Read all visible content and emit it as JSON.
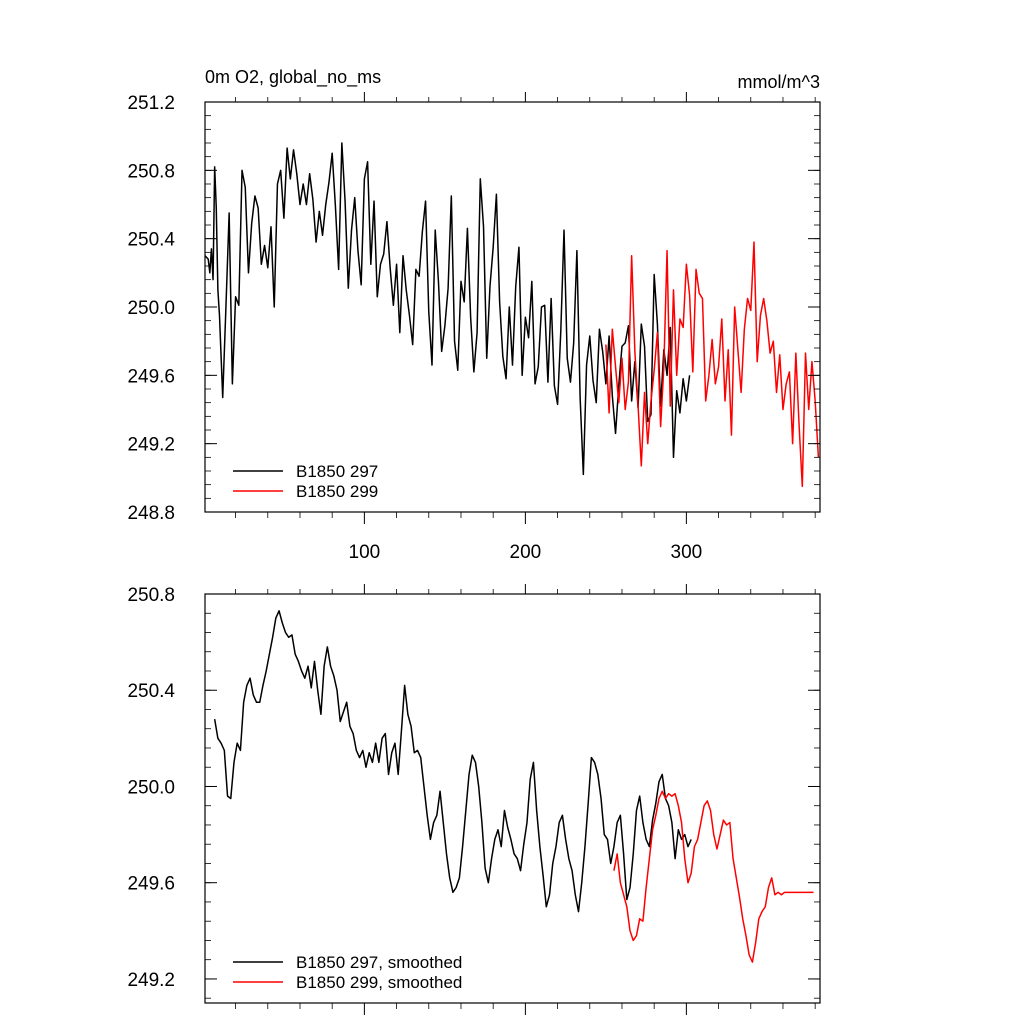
{
  "chart_data": [
    {
      "type": "line",
      "title": "0m O2, global_no_ms",
      "units": "mmol/m^3",
      "xlabel": "",
      "ylabel": "",
      "xlim": [
        1,
        383
      ],
      "ylim": [
        248.8,
        251.2
      ],
      "x_ticks": [
        100,
        200,
        300
      ],
      "x_tick_labels": [
        "100",
        "200",
        "300"
      ],
      "y_ticks": [
        248.8,
        249.2,
        249.6,
        250.0,
        250.4,
        250.8,
        251.2
      ],
      "y_tick_labels": [
        "248.8",
        "249.2",
        "249.6",
        "250.0",
        "250.4",
        "250.8",
        "251.2"
      ],
      "grid": false,
      "legend_position": "bottom-left",
      "series": [
        {
          "name": "B1850 297",
          "color": "#000000",
          "x": [
            1,
            3,
            4,
            5,
            6,
            7,
            8,
            9,
            10,
            12,
            14,
            16,
            18,
            20,
            22,
            24,
            26,
            28,
            30,
            32,
            34,
            36,
            38,
            40,
            42,
            44,
            46,
            48,
            50,
            52,
            54,
            56,
            58,
            60,
            62,
            64,
            66,
            68,
            70,
            72,
            74,
            76,
            78,
            80,
            82,
            84,
            86,
            88,
            90,
            92,
            94,
            96,
            98,
            100,
            102,
            104,
            106,
            108,
            110,
            112,
            114,
            116,
            118,
            120,
            122,
            124,
            126,
            128,
            130,
            132,
            134,
            136,
            138,
            140,
            142,
            144,
            146,
            148,
            150,
            152,
            154,
            156,
            158,
            160,
            162,
            164,
            166,
            168,
            170,
            172,
            174,
            176,
            178,
            180,
            182,
            184,
            186,
            188,
            190,
            192,
            194,
            196,
            198,
            200,
            202,
            204,
            206,
            208,
            210,
            212,
            214,
            216,
            218,
            220,
            222,
            224,
            226,
            228,
            230,
            232,
            234,
            236,
            238,
            240,
            242,
            244,
            246,
            248,
            250,
            252,
            254,
            256,
            258,
            260,
            262,
            264,
            266,
            268,
            270,
            272,
            274,
            276,
            278,
            280,
            282,
            284,
            286,
            288,
            290,
            292,
            294,
            296,
            298,
            300,
            302
          ],
          "y": [
            250.3,
            250.28,
            250.2,
            250.34,
            250.16,
            250.82,
            250.58,
            250.1,
            249.95,
            249.47,
            250.0,
            250.55,
            249.55,
            250.06,
            250.01,
            250.8,
            250.7,
            250.2,
            250.49,
            250.65,
            250.58,
            250.25,
            250.36,
            250.23,
            250.47,
            250.0,
            250.72,
            250.8,
            250.52,
            250.93,
            250.75,
            250.92,
            250.78,
            250.6,
            250.72,
            250.6,
            250.78,
            250.63,
            250.38,
            250.56,
            250.42,
            250.6,
            250.73,
            250.9,
            250.59,
            250.22,
            250.96,
            250.62,
            250.11,
            250.45,
            250.64,
            250.33,
            250.13,
            250.75,
            250.85,
            250.25,
            250.62,
            250.06,
            250.25,
            250.31,
            250.5,
            250.23,
            250.01,
            250.25,
            249.85,
            250.3,
            250.1,
            249.95,
            249.78,
            250.22,
            250.18,
            250.44,
            250.62,
            249.97,
            249.66,
            250.45,
            250.15,
            249.74,
            249.89,
            250.11,
            250.65,
            249.8,
            249.63,
            250.15,
            250.03,
            250.46,
            249.94,
            249.62,
            249.85,
            250.75,
            250.47,
            249.7,
            250.12,
            250.35,
            250.66,
            250.03,
            249.71,
            249.58,
            250.0,
            249.66,
            250.12,
            250.35,
            249.6,
            249.94,
            249.82,
            250.15,
            249.55,
            249.65,
            250.0,
            250.01,
            249.56,
            250.05,
            249.54,
            249.43,
            249.86,
            250.45,
            249.7,
            249.56,
            249.79,
            250.33,
            249.47,
            249.02,
            249.66,
            249.83,
            249.57,
            249.44,
            249.87,
            249.74,
            249.55,
            249.83,
            249.48,
            249.26,
            249.54,
            249.77,
            249.79,
            249.89,
            249.45,
            249.68,
            249.41,
            249.9,
            249.77,
            249.33,
            249.37,
            250.19,
            249.9,
            249.42,
            249.75,
            249.6,
            249.88,
            249.12,
            249.51,
            249.38,
            249.58,
            249.45,
            249.6
          ]
        },
        {
          "name": "B1850 299",
          "color": "#ff0000",
          "x": [
            250,
            252,
            254,
            256,
            258,
            260,
            262,
            264,
            266,
            268,
            270,
            272,
            274,
            276,
            278,
            280,
            282,
            284,
            286,
            288,
            290,
            292,
            294,
            296,
            298,
            300,
            302,
            304,
            306,
            308,
            310,
            312,
            314,
            316,
            318,
            320,
            322,
            324,
            326,
            328,
            330,
            332,
            334,
            336,
            338,
            340,
            342,
            344,
            346,
            348,
            350,
            352,
            354,
            356,
            358,
            360,
            362,
            364,
            366,
            368,
            370,
            372,
            374,
            376,
            378,
            380,
            382
          ],
          "y": [
            249.78,
            249.38,
            249.87,
            249.65,
            249.44,
            249.7,
            249.4,
            249.56,
            250.3,
            249.74,
            249.42,
            249.07,
            249.5,
            249.2,
            249.45,
            249.63,
            249.85,
            249.3,
            249.65,
            250.33,
            249.42,
            250.1,
            249.6,
            249.93,
            249.88,
            250.25,
            250.07,
            249.62,
            250.22,
            250.08,
            250.05,
            249.45,
            249.6,
            249.81,
            249.55,
            249.65,
            249.93,
            249.45,
            249.75,
            249.25,
            250.0,
            249.75,
            249.5,
            249.87,
            250.05,
            249.98,
            250.38,
            249.68,
            249.95,
            250.05,
            249.92,
            249.73,
            249.8,
            249.5,
            249.72,
            249.4,
            249.55,
            249.62,
            249.2,
            249.73,
            249.31,
            248.95,
            249.73,
            249.4,
            249.68,
            249.45,
            249.12
          ]
        }
      ]
    },
    {
      "type": "line",
      "title": "",
      "xlabel": "",
      "ylabel": "",
      "xlim": [
        1,
        383
      ],
      "ylim": [
        249.1,
        250.8
      ],
      "x_ticks": [
        100,
        200,
        300
      ],
      "x_tick_labels": [],
      "y_ticks": [
        249.2,
        249.6,
        250.0,
        250.4,
        250.8
      ],
      "y_tick_labels": [
        "249.2",
        "249.6",
        "250.0",
        "250.4",
        "250.8"
      ],
      "grid": false,
      "legend_position": "bottom-left",
      "series": [
        {
          "name": "B1850 297, smoothed",
          "color": "#000000",
          "x": [
            7,
            9,
            11,
            13,
            15,
            17,
            19,
            21,
            23,
            25,
            27,
            29,
            31,
            33,
            35,
            37,
            39,
            41,
            43,
            45,
            47,
            49,
            51,
            53,
            55,
            57,
            59,
            61,
            63,
            65,
            67,
            69,
            71,
            73,
            75,
            77,
            79,
            81,
            83,
            85,
            87,
            89,
            91,
            93,
            95,
            97,
            99,
            101,
            103,
            105,
            107,
            109,
            111,
            113,
            115,
            117,
            119,
            121,
            123,
            125,
            127,
            129,
            131,
            133,
            135,
            137,
            139,
            141,
            143,
            145,
            147,
            149,
            151,
            153,
            155,
            157,
            159,
            161,
            163,
            165,
            167,
            169,
            171,
            173,
            175,
            177,
            179,
            181,
            183,
            185,
            187,
            189,
            191,
            193,
            195,
            197,
            199,
            201,
            203,
            205,
            207,
            209,
            211,
            213,
            215,
            217,
            219,
            221,
            223,
            225,
            227,
            229,
            231,
            233,
            235,
            237,
            239,
            241,
            243,
            245,
            247,
            249,
            251,
            253,
            255,
            257,
            259,
            261,
            263,
            265,
            267,
            269,
            271,
            273,
            275,
            277,
            279,
            281,
            283,
            285,
            287,
            289,
            291,
            293,
            295,
            297,
            299,
            301,
            303
          ],
          "y": [
            250.28,
            250.2,
            250.18,
            250.15,
            249.96,
            249.95,
            250.1,
            250.18,
            250.15,
            250.35,
            250.42,
            250.45,
            250.38,
            250.35,
            250.35,
            250.42,
            250.48,
            250.55,
            250.62,
            250.7,
            250.73,
            250.68,
            250.64,
            250.62,
            250.63,
            250.55,
            250.52,
            250.48,
            250.45,
            250.5,
            250.41,
            250.52,
            250.4,
            250.3,
            250.5,
            250.58,
            250.5,
            250.46,
            250.4,
            250.27,
            250.31,
            250.35,
            250.25,
            250.22,
            250.15,
            250.12,
            250.15,
            250.08,
            250.14,
            250.1,
            250.18,
            250.1,
            250.2,
            250.22,
            250.05,
            250.14,
            250.18,
            250.05,
            250.23,
            250.42,
            250.3,
            250.25,
            250.14,
            250.15,
            250.12,
            250.0,
            249.88,
            249.78,
            249.85,
            249.88,
            249.98,
            249.85,
            249.72,
            249.62,
            249.56,
            249.58,
            249.62,
            249.75,
            249.9,
            250.05,
            250.13,
            250.1,
            250.0,
            249.85,
            249.66,
            249.6,
            249.7,
            249.78,
            249.82,
            249.75,
            249.9,
            249.83,
            249.78,
            249.72,
            249.7,
            249.65,
            249.76,
            249.85,
            250.03,
            250.1,
            249.9,
            249.75,
            249.63,
            249.5,
            249.55,
            249.68,
            249.75,
            249.85,
            249.88,
            249.78,
            249.7,
            249.65,
            249.55,
            249.48,
            249.6,
            249.75,
            249.93,
            250.12,
            250.1,
            250.05,
            249.95,
            249.8,
            249.78,
            249.68,
            249.75,
            249.85,
            249.88,
            249.72,
            249.53,
            249.58,
            249.72,
            249.9,
            249.96,
            249.85,
            249.78,
            249.75,
            249.86,
            249.93,
            250.02,
            250.05,
            249.95,
            249.92,
            249.85,
            249.7,
            249.82,
            249.78,
            249.8,
            249.75,
            249.78
          ]
        },
        {
          "name": "B1850 299, smoothed",
          "color": "#ff0000",
          "x": [
            255,
            257,
            259,
            261,
            263,
            265,
            267,
            269,
            271,
            273,
            275,
            277,
            279,
            281,
            283,
            285,
            287,
            289,
            291,
            293,
            295,
            297,
            299,
            301,
            303,
            305,
            307,
            309,
            311,
            313,
            315,
            317,
            319,
            321,
            323,
            325,
            327,
            329,
            331,
            333,
            335,
            337,
            339,
            341,
            343,
            345,
            347,
            349,
            351,
            353,
            355,
            357,
            359,
            361,
            363,
            365,
            367,
            369,
            371,
            373,
            375,
            377,
            379
          ],
          "y": [
            249.65,
            249.72,
            249.6,
            249.55,
            249.5,
            249.4,
            249.36,
            249.38,
            249.45,
            249.44,
            249.58,
            249.7,
            249.82,
            249.88,
            249.95,
            249.98,
            249.95,
            249.97,
            249.96,
            249.97,
            249.92,
            249.85,
            249.7,
            249.6,
            249.64,
            249.75,
            249.78,
            249.85,
            249.92,
            249.94,
            249.9,
            249.8,
            249.74,
            249.8,
            249.86,
            249.84,
            249.85,
            249.7,
            249.62,
            249.54,
            249.45,
            249.38,
            249.3,
            249.27,
            249.35,
            249.45,
            249.48,
            249.5,
            249.58,
            249.62,
            249.55,
            249.56,
            249.55,
            249.56,
            249.56,
            249.56,
            249.56,
            249.56,
            249.56,
            249.56,
            249.56,
            249.56,
            249.56
          ]
        }
      ]
    }
  ]
}
